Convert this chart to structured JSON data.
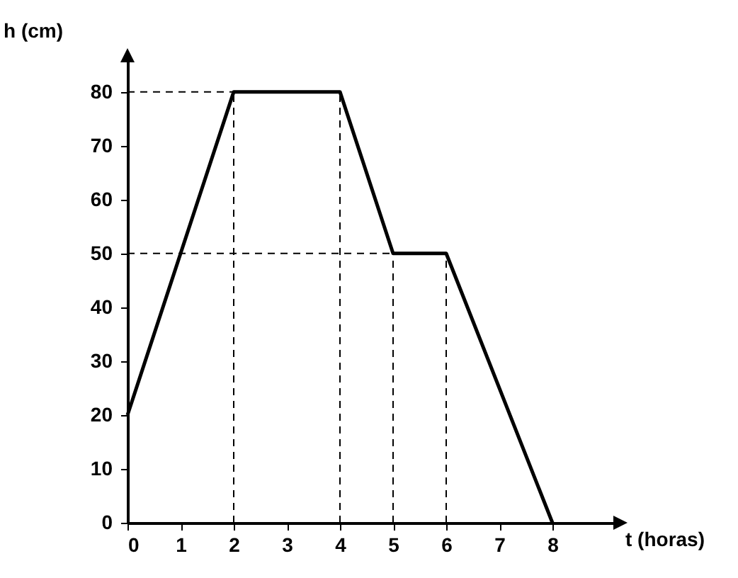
{
  "chart_data": {
    "type": "line",
    "xlabel": "t (horas)",
    "ylabel": "h (cm)",
    "x": [
      0,
      2,
      4,
      5,
      6,
      8
    ],
    "series": [
      {
        "color": "#000000",
        "values": [
          20,
          80,
          80,
          50,
          50,
          0
        ]
      }
    ],
    "xlim": [
      0,
      9.2
    ],
    "ylim": [
      0,
      86
    ],
    "xticks": [
      0,
      1,
      2,
      3,
      4,
      5,
      6,
      7,
      8
    ],
    "yticks": [
      0,
      10,
      20,
      30,
      40,
      50,
      60,
      70,
      80
    ],
    "ref_lines": [
      {
        "axis": "y",
        "value": 80,
        "line_style": "dashed",
        "color": "#000000"
      },
      {
        "axis": "y",
        "value": 50,
        "line_style": "dashed",
        "color": "#000000"
      },
      {
        "axis": "x",
        "value": 2,
        "line_style": "dashed",
        "color": "#000000"
      },
      {
        "axis": "x",
        "value": 4,
        "line_style": "dashed",
        "color": "#000000"
      },
      {
        "axis": "x",
        "value": 5,
        "line_style": "dashed",
        "color": "#000000"
      },
      {
        "axis": "x",
        "value": 6,
        "line_style": "dashed",
        "color": "#000000"
      }
    ],
    "grid": false,
    "marker": "none",
    "line_style": "solid"
  }
}
